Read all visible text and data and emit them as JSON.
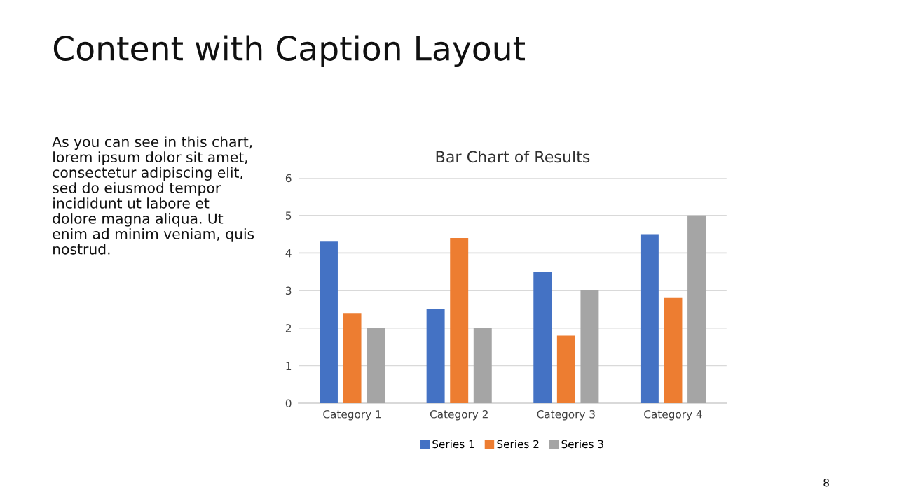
{
  "chart_data": {
    "type": "bar",
    "title": "Bar Chart of Results",
    "categories": [
      "Category 1",
      "Category 2",
      "Category 3",
      "Category 4"
    ],
    "series": [
      {
        "name": "Series 1",
        "color": "#4472c4",
        "values": [
          4.3,
          2.5,
          3.5,
          4.5
        ]
      },
      {
        "name": "Series 2",
        "color": "#ed7d31",
        "values": [
          2.4,
          4.4,
          1.8,
          2.8
        ]
      },
      {
        "name": "Series 3",
        "color": "#a5a5a5",
        "values": [
          2,
          2,
          3,
          5
        ]
      }
    ],
    "ylim": [
      0,
      6
    ],
    "yticks": [
      0,
      1,
      2,
      3,
      4,
      5,
      6
    ],
    "grid": "y",
    "legend": "bottom",
    "annotations": [
      "Content with Caption Layout",
      "As you can see in this chart,\nlorem ipsum dolor sit amet,\nconsectetur adipiscing elit,\nsed do eiusmod tempor\nincididunt ut labore et\ndolore magna aliqua. Ut\nenim ad minim veniam, quis\nnostrud.",
      "8"
    ]
  }
}
